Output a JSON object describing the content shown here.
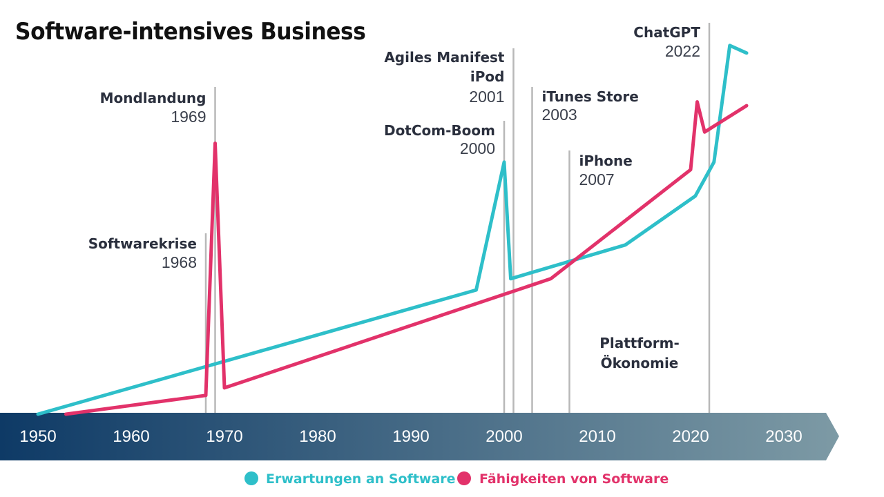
{
  "title": "Software-intensives Business",
  "chart_data": {
    "type": "line",
    "xlim": [
      1950,
      2030
    ],
    "x_ticks": [
      "1950",
      "1960",
      "1970",
      "1980",
      "1990",
      "2000",
      "2010",
      "2020",
      "2030"
    ],
    "ylim": [
      0,
      100
    ],
    "series": [
      {
        "name": "Erwartungen an Software",
        "color": "#2ebfc9",
        "points": [
          [
            1950,
            0
          ],
          [
            1997,
            33
          ],
          [
            2000,
            67
          ],
          [
            2000.7,
            36
          ],
          [
            2013,
            45
          ],
          [
            2020.5,
            58
          ],
          [
            2022.5,
            67
          ],
          [
            2024.2,
            98
          ],
          [
            2026,
            96
          ]
        ]
      },
      {
        "name": "Fähigkeiten von Software",
        "color": "#e2326a",
        "points": [
          [
            1953,
            0
          ],
          [
            1968,
            5
          ],
          [
            1969,
            72
          ],
          [
            1970,
            7
          ],
          [
            2005,
            36
          ],
          [
            2020,
            65
          ],
          [
            2020.7,
            83
          ],
          [
            2021.5,
            75
          ],
          [
            2026,
            82
          ]
        ]
      }
    ],
    "events": [
      {
        "name": "Softwarekrise",
        "year": "1968",
        "x": 1968
      },
      {
        "name": "Mondlandung",
        "year": "1969",
        "x": 1969
      },
      {
        "name": "DotCom-Boom",
        "year": "2000",
        "x": 2000
      },
      {
        "name": "Agiles Manifest",
        "name2": "iPod",
        "year": "2001",
        "x": 2001
      },
      {
        "name": "iTunes Store",
        "year": "2003",
        "x": 2003
      },
      {
        "name": "iPhone",
        "year": "2007",
        "x": 2007
      },
      {
        "name": "ChatGPT",
        "year": "2022",
        "x": 2022
      }
    ],
    "annotations": [
      "Plattform-",
      "Ökonomie"
    ],
    "legend_position": "bottom-center"
  }
}
